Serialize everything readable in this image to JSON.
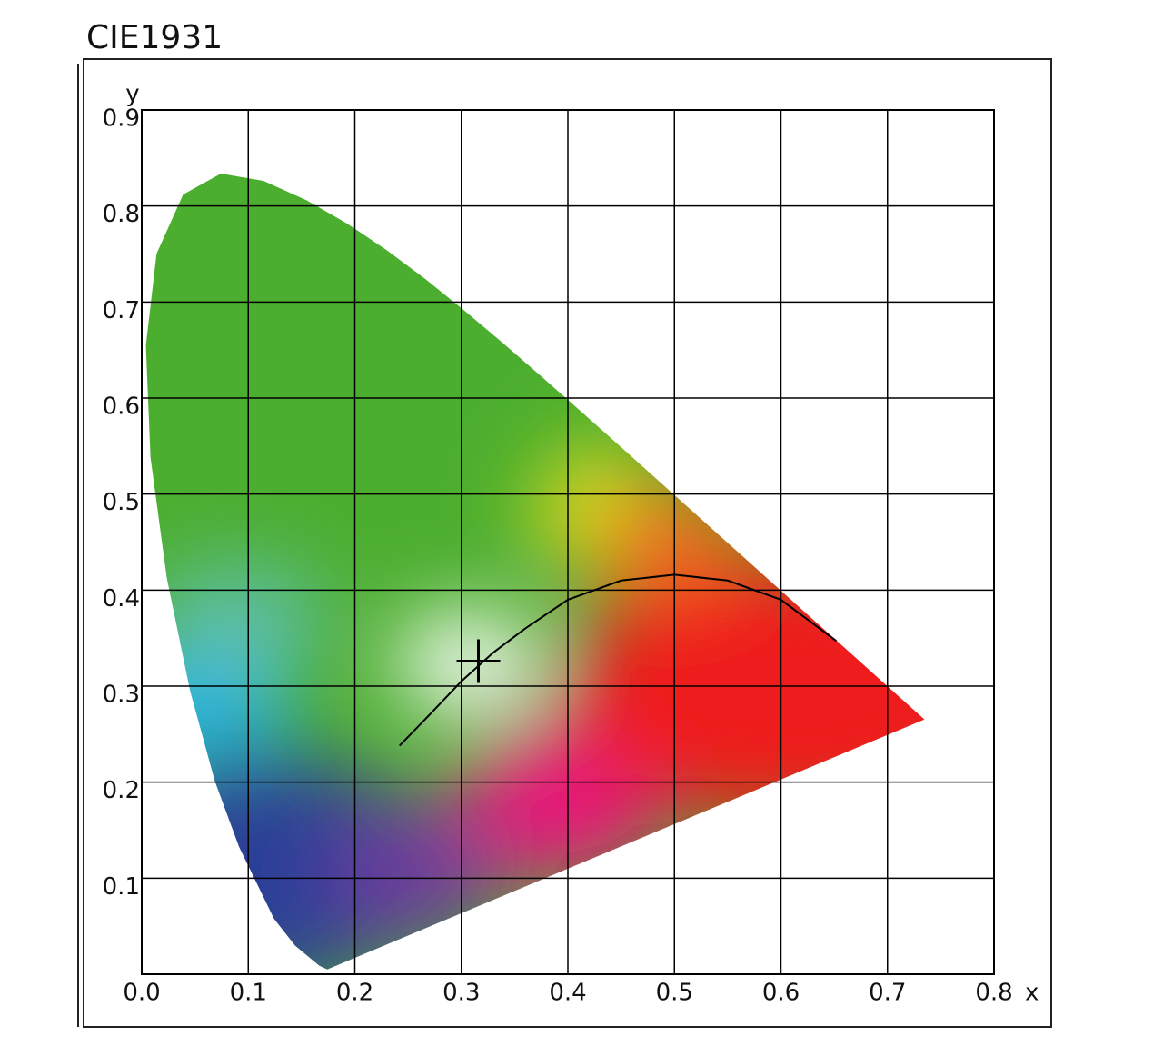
{
  "chart_data": {
    "type": "line",
    "title": "CIE1931",
    "x_label": "x",
    "y_label": "y",
    "xlim": [
      0,
      0.8
    ],
    "ylim": [
      0,
      0.9
    ],
    "xticks": [
      {
        "value": 0,
        "label": "0.0"
      },
      0.1,
      0.2,
      0.3,
      0.4,
      0.5,
      0.6,
      0.7,
      0.8
    ],
    "yticks": [
      0.1,
      0.2,
      0.3,
      0.4,
      0.5,
      0.6,
      0.7,
      0.8,
      0.9
    ],
    "grid": true,
    "series": [
      {
        "type": "area",
        "color": "#000000",
        "x": [
          0.1741,
          0.1666,
          0.144,
          0.1241,
          0.0913,
          0.0687,
          0.0454,
          0.0235,
          0.0082,
          0.0039,
          0.0139,
          0.0389,
          0.0743,
          0.1142,
          0.1547,
          0.1929,
          0.2296,
          0.2658,
          0.3016,
          0.3373,
          0.3731,
          0.4087,
          0.4441,
          0.4788,
          0.5125,
          0.5448,
          0.5752,
          0.6029,
          0.627,
          0.6482,
          0.6658,
          0.6915,
          0.7347
        ],
        "values": [
          0.005,
          0.0089,
          0.0297,
          0.0578,
          0.1327,
          0.2007,
          0.295,
          0.4127,
          0.5384,
          0.6548,
          0.7502,
          0.812,
          0.8338,
          0.8262,
          0.8059,
          0.7816,
          0.7543,
          0.7243,
          0.6923,
          0.6589,
          0.6245,
          0.5896,
          0.5547,
          0.5202,
          0.4866,
          0.4544,
          0.4242,
          0.3965,
          0.3725,
          0.3514,
          0.334,
          0.3083,
          0.2653
        ]
      },
      {
        "type": "line",
        "color": "#000000",
        "x": [
          0.242,
          0.27,
          0.3,
          0.33,
          0.36,
          0.4,
          0.45,
          0.5,
          0.55,
          0.6,
          0.652
        ],
        "values": [
          0.238,
          0.27,
          0.305,
          0.335,
          0.36,
          0.39,
          0.41,
          0.416,
          0.41,
          0.39,
          0.347
        ]
      },
      {
        "type": "marker",
        "color": "#000000",
        "x": [
          0.316
        ],
        "values": [
          0.326
        ]
      }
    ]
  }
}
